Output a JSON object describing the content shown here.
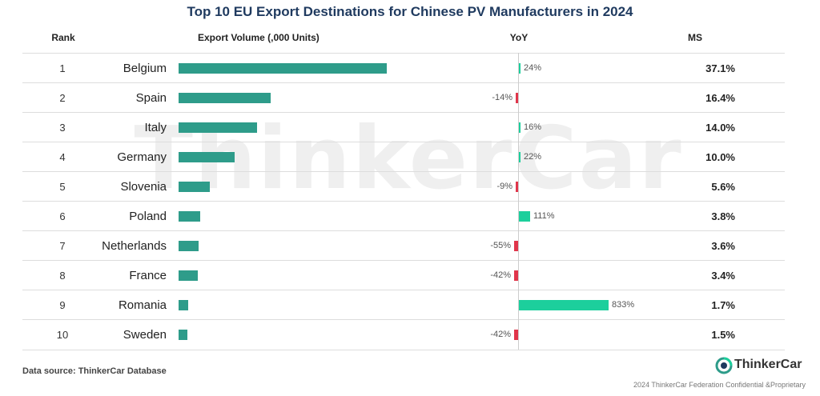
{
  "chart_data": {
    "type": "table",
    "title": "Top 10 EU Export Destinations for Chinese PV Manufacturers in 2024",
    "columns": {
      "rank": "Rank",
      "volume": "Export Volume (,000 Units)",
      "yoy": "YoY",
      "ms": "MS"
    },
    "volume_max": 37.1,
    "yoy_max": 833,
    "rows": [
      {
        "rank": "1",
        "country": "Belgium",
        "volume": 37.1,
        "yoy": 24,
        "yoy_label": "24%",
        "ms": "37.1%"
      },
      {
        "rank": "2",
        "country": "Spain",
        "volume": 16.4,
        "yoy": -14,
        "yoy_label": "-14%",
        "ms": "16.4%"
      },
      {
        "rank": "3",
        "country": "Italy",
        "volume": 14.0,
        "yoy": 16,
        "yoy_label": "16%",
        "ms": "14.0%"
      },
      {
        "rank": "4",
        "country": "Germany",
        "volume": 10.0,
        "yoy": 22,
        "yoy_label": "22%",
        "ms": "10.0%"
      },
      {
        "rank": "5",
        "country": "Slovenia",
        "volume": 5.6,
        "yoy": -9,
        "yoy_label": "-9%",
        "ms": "5.6%"
      },
      {
        "rank": "6",
        "country": "Poland",
        "volume": 3.8,
        "yoy": 111,
        "yoy_label": "111%",
        "ms": "3.8%"
      },
      {
        "rank": "7",
        "country": "Netherlands",
        "volume": 3.6,
        "yoy": -55,
        "yoy_label": "-55%",
        "ms": "3.6%"
      },
      {
        "rank": "8",
        "country": "France",
        "volume": 3.4,
        "yoy": -42,
        "yoy_label": "-42%",
        "ms": "3.4%"
      },
      {
        "rank": "9",
        "country": "Romania",
        "volume": 1.7,
        "yoy": 833,
        "yoy_label": "833%",
        "ms": "1.7%"
      },
      {
        "rank": "10",
        "country": "Sweden",
        "volume": 1.5,
        "yoy": -42,
        "yoy_label": "-42%",
        "ms": "1.5%"
      }
    ]
  },
  "colors": {
    "volume_bar": "#2e9c8a",
    "yoy_positive": "#1ccf9c",
    "yoy_negative": "#e0354a",
    "title": "#1f3a5f"
  },
  "watermark": "ThinkerCar",
  "source": "Data source: ThinkerCar Database",
  "logo": {
    "text": "ThinkerCar",
    "icon": "thinkercar-logo-icon"
  },
  "footer": "2024 ThinkerCar Federation Confidential &Proprietary"
}
